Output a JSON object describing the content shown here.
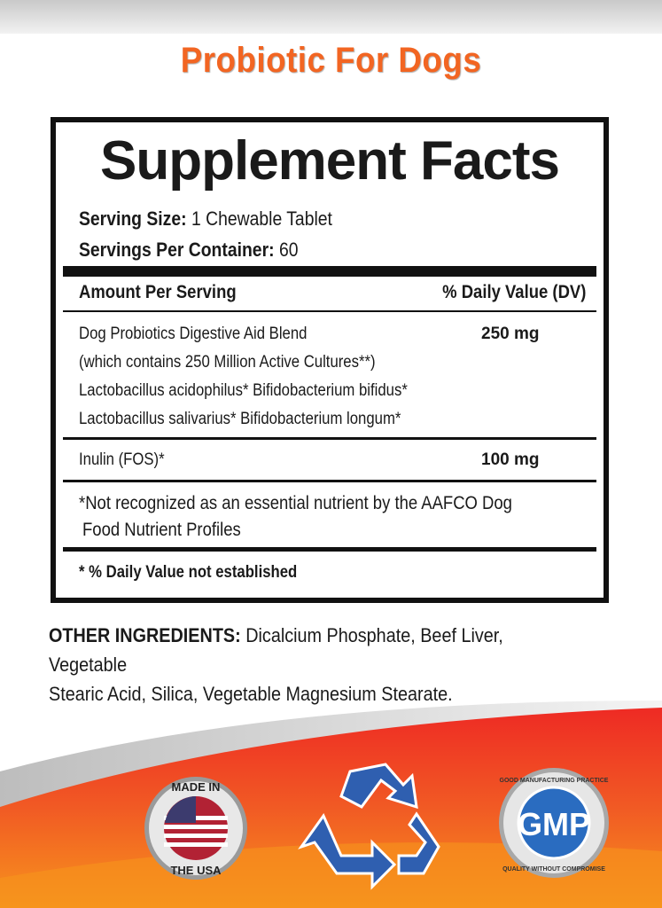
{
  "brand_title": "Probiotic For Dogs",
  "facts": {
    "title": "Supplement Facts",
    "serving_size_label": "Serving Size:",
    "serving_size": "1 Chewable Tablet",
    "servings_label": "Servings Per Container:",
    "servings": "60",
    "header_amount": "Amount  Per Serving",
    "header_dv": "% Daily Value (DV)",
    "blend": [
      "Dog Probiotics Digestive Aid Blend",
      "(which contains 250 Million Active Cultures**)",
      "Lactobacillus acidophilus* Bifidobacterium bifidus*",
      "Lactobacillus salivarius* Bifidobacterium longum*"
    ],
    "blend_amount": "250 mg",
    "inulin": "Inulin (FOS)*",
    "inulin_amount": "100 mg",
    "note": [
      "*Not recognized as an essential nutrient by the AAFCO Dog",
      "Food Nutrient Profiles"
    ],
    "dv_note": "* % Daily Value not established"
  },
  "other_ingredients": {
    "label": "OTHER INGREDIENTS:",
    "line1": "Dicalcium Phosphate, Beef Liver,  Vegetable",
    "line2": "Stearic  Acid,  Silica,  Vegetable  Magnesium  Stearate."
  },
  "badges": {
    "usa_top": "MADE IN",
    "usa_bottom": "THE USA",
    "gmp": "GMP",
    "gmp_top": "GOOD MANUFACTURING PRACTICE",
    "gmp_bottom": "QUALITY WITHOUT COMPROMISE"
  },
  "colors": {
    "brand": "#f26522",
    "gmp_blue": "#2a6cc0",
    "recycle_blue": "#2f5fb0"
  }
}
